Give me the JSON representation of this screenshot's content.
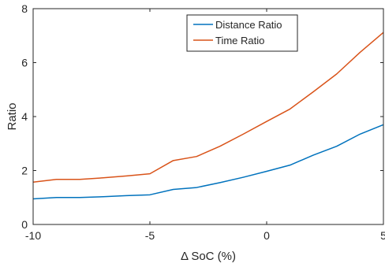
{
  "chart_data": {
    "type": "line",
    "title": "",
    "xlabel": "Δ SoC (%)",
    "ylabel": "Ratio",
    "xlim": [
      -10,
      5
    ],
    "ylim": [
      0,
      8
    ],
    "xticks": [
      -10,
      -5,
      0,
      5
    ],
    "yticks": [
      0,
      2,
      4,
      6,
      8
    ],
    "x": [
      -10,
      -9,
      -8,
      -7,
      -6,
      -5,
      -4,
      -3,
      -2,
      -1,
      0,
      1,
      2,
      3,
      4,
      5
    ],
    "grid": false,
    "legend_position": "top-center",
    "series": [
      {
        "name": "Distance Ratio",
        "color": "#0072BD",
        "values": [
          0.95,
          1.0,
          1.0,
          1.03,
          1.07,
          1.1,
          1.3,
          1.37,
          1.55,
          1.75,
          1.97,
          2.2,
          2.57,
          2.9,
          3.35,
          3.7
        ]
      },
      {
        "name": "Time Ratio",
        "color": "#D95319",
        "values": [
          1.57,
          1.67,
          1.67,
          1.73,
          1.8,
          1.88,
          2.37,
          2.52,
          2.9,
          3.35,
          3.82,
          4.28,
          4.92,
          5.58,
          6.38,
          7.12
        ]
      }
    ]
  }
}
